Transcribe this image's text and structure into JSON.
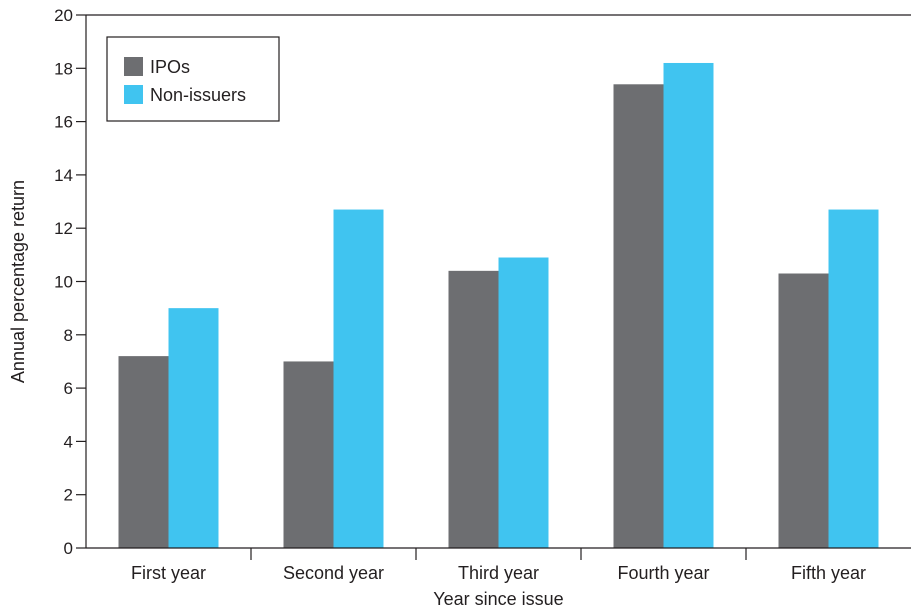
{
  "chart_data": {
    "type": "bar",
    "title": "",
    "xlabel": "Year since issue",
    "ylabel": "Annual percentage return",
    "ylim": [
      0,
      20
    ],
    "yticks": [
      "0",
      "2",
      "4",
      "6",
      "8",
      "10",
      "12",
      "14",
      "16",
      "18",
      "20"
    ],
    "categories": [
      "First year",
      "Second year",
      "Third year",
      "Fourth year",
      "Fifth year"
    ],
    "series": [
      {
        "name": "IPOs",
        "color": "#6d6e71",
        "values": [
          7.2,
          7.0,
          10.4,
          17.4,
          10.3
        ]
      },
      {
        "name": "Non-issuers",
        "color": "#40c4f0",
        "values": [
          9.0,
          12.7,
          10.9,
          18.2,
          12.7
        ]
      }
    ],
    "grid": false,
    "legend_position": "top-left"
  }
}
